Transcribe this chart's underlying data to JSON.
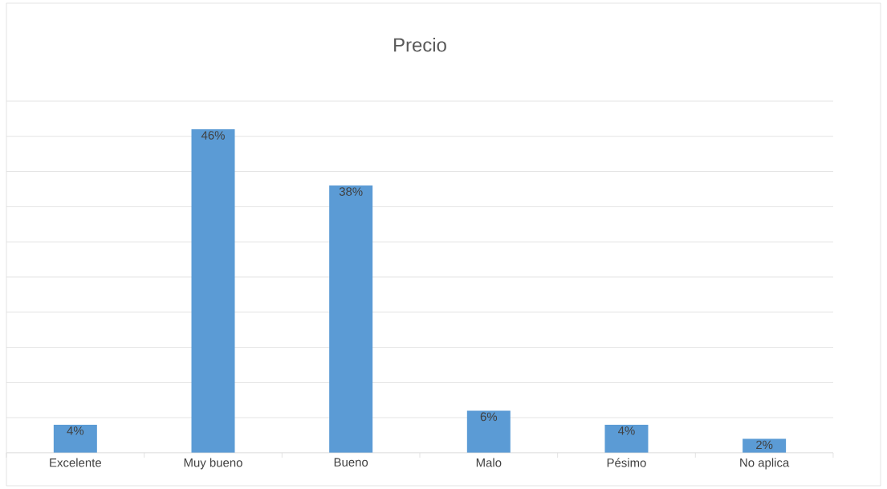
{
  "chart_data": {
    "type": "bar",
    "title": "Precio",
    "categories": [
      "Excelente",
      "Muy bueno",
      "Bueno",
      "Malo",
      "Pésimo",
      "No aplica"
    ],
    "values": [
      4,
      46,
      38,
      6,
      4,
      2
    ],
    "value_labels": [
      "4%",
      "46%",
      "38%",
      "6%",
      "4%",
      "2%"
    ],
    "color": "#5b9bd5",
    "ylim": [
      0,
      50
    ],
    "yticks": [
      {
        "value": 0,
        "label": null
      },
      {
        "value": 5,
        "label": null
      },
      {
        "value": 10,
        "label": null
      },
      {
        "value": 15,
        "label": null
      },
      {
        "value": 20,
        "label": null
      },
      {
        "value": 25,
        "label": null
      },
      {
        "value": 30,
        "label": null
      },
      {
        "value": 35,
        "label": null
      },
      {
        "value": 40,
        "label": null
      },
      {
        "value": 45,
        "label": null
      },
      {
        "value": 50,
        "label": null
      }
    ],
    "grid": "y",
    "tick_labels": "x"
  }
}
